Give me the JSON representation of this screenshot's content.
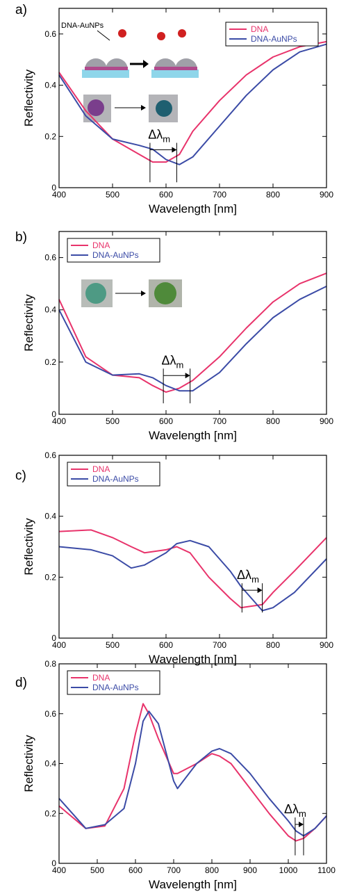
{
  "chart_data": [
    {
      "type": "line",
      "panel_label": "a)",
      "x_label": "Wavelength [nm]",
      "y_label": "Reflectivity",
      "inset_label": "DNA-AuNPs",
      "x": [
        400,
        450,
        500,
        550,
        575,
        600,
        625,
        650,
        700,
        750,
        800,
        850,
        900
      ],
      "series": [
        {
          "name": "DNA",
          "color": "#e8336b",
          "values": [
            0.45,
            0.3,
            0.19,
            0.13,
            0.1,
            0.1,
            0.13,
            0.22,
            0.34,
            0.44,
            0.51,
            0.55,
            0.57
          ]
        },
        {
          "name": "DNA-AuNPs",
          "color": "#3b4ba6",
          "values": [
            0.44,
            0.28,
            0.19,
            0.165,
            0.15,
            0.11,
            0.09,
            0.12,
            0.24,
            0.36,
            0.46,
            0.53,
            0.56
          ]
        }
      ],
      "xlim": [
        400,
        900
      ],
      "xticks": [
        400,
        500,
        600,
        700,
        800,
        900
      ],
      "ylim": [
        0,
        0.7
      ],
      "yticks": [
        0,
        0.2,
        0.4,
        0.6
      ],
      "legend": "upper-right",
      "annotation": {
        "text": "Δλ",
        "subscript": "m",
        "from": 570,
        "to": 620
      }
    },
    {
      "type": "line",
      "panel_label": "b)",
      "x_label": "Wavelength [nm]",
      "y_label": "Reflectivity",
      "x": [
        400,
        450,
        500,
        550,
        575,
        600,
        625,
        650,
        700,
        750,
        800,
        850,
        900
      ],
      "series": [
        {
          "name": "DNA",
          "color": "#e8336b",
          "values": [
            0.44,
            0.22,
            0.15,
            0.14,
            0.11,
            0.085,
            0.1,
            0.13,
            0.22,
            0.33,
            0.43,
            0.5,
            0.54
          ]
        },
        {
          "name": "DNA-AuNPs",
          "color": "#3b4ba6",
          "values": [
            0.4,
            0.2,
            0.15,
            0.155,
            0.14,
            0.11,
            0.09,
            0.09,
            0.16,
            0.27,
            0.37,
            0.44,
            0.49
          ]
        }
      ],
      "xlim": [
        400,
        900
      ],
      "xticks": [
        400,
        500,
        600,
        700,
        800,
        900
      ],
      "ylim": [
        0,
        0.7
      ],
      "yticks": [
        0,
        0.2,
        0.4,
        0.6
      ],
      "legend": "upper-left",
      "annotation": {
        "text": "Δλ",
        "subscript": "m",
        "from": 595,
        "to": 645
      }
    },
    {
      "type": "line",
      "panel_label": "c)",
      "x_label": "Wavelength [nm]",
      "y_label": "Reflectivity",
      "x": [
        400,
        460,
        500,
        535,
        560,
        600,
        620,
        645,
        680,
        720,
        740,
        780,
        800,
        840,
        900
      ],
      "series": [
        {
          "name": "DNA",
          "color": "#e8336b",
          "values": [
            0.35,
            0.355,
            0.33,
            0.3,
            0.28,
            0.29,
            0.3,
            0.28,
            0.2,
            0.13,
            0.1,
            0.11,
            0.15,
            0.22,
            0.33
          ]
        },
        {
          "name": "DNA-AuNPs",
          "color": "#3b4ba6",
          "values": [
            0.3,
            0.29,
            0.27,
            0.23,
            0.24,
            0.28,
            0.31,
            0.32,
            0.3,
            0.22,
            0.17,
            0.09,
            0.1,
            0.15,
            0.26
          ]
        }
      ],
      "xlim": [
        400,
        900
      ],
      "xticks": [
        400,
        500,
        600,
        700,
        800,
        900
      ],
      "ylim": [
        0,
        0.6
      ],
      "yticks": [
        0,
        0.2,
        0.4,
        0.6
      ],
      "legend": "upper-left",
      "annotation": {
        "text": "Δλ",
        "subscript": "m",
        "from": 742,
        "to": 780
      }
    },
    {
      "type": "line",
      "panel_label": "d)",
      "x_label": "Wavelength [nm]",
      "y_label": "Reflectivity",
      "x": [
        400,
        470,
        520,
        570,
        600,
        620,
        635,
        660,
        700,
        710,
        760,
        800,
        820,
        850,
        900,
        950,
        1000,
        1020,
        1040,
        1070,
        1100
      ],
      "series": [
        {
          "name": "DNA",
          "color": "#e8336b",
          "values": [
            0.23,
            0.14,
            0.15,
            0.3,
            0.52,
            0.64,
            0.6,
            0.5,
            0.36,
            0.36,
            0.4,
            0.44,
            0.43,
            0.4,
            0.3,
            0.2,
            0.11,
            0.09,
            0.1,
            0.14,
            0.19
          ]
        },
        {
          "name": "DNA-AuNPs",
          "color": "#3b4ba6",
          "values": [
            0.26,
            0.14,
            0.155,
            0.22,
            0.4,
            0.57,
            0.61,
            0.56,
            0.33,
            0.3,
            0.4,
            0.45,
            0.46,
            0.44,
            0.36,
            0.26,
            0.17,
            0.13,
            0.11,
            0.14,
            0.19
          ]
        }
      ],
      "xlim": [
        400,
        1100
      ],
      "xticks": [
        400,
        500,
        600,
        700,
        800,
        900,
        1000,
        1100
      ],
      "ylim": [
        0,
        0.8
      ],
      "yticks": [
        0,
        0.2,
        0.4,
        0.6,
        0.8
      ],
      "legend": "upper-left",
      "annotation": {
        "text": "Δλ",
        "subscript": "m",
        "from": 1018,
        "to": 1040
      }
    }
  ]
}
